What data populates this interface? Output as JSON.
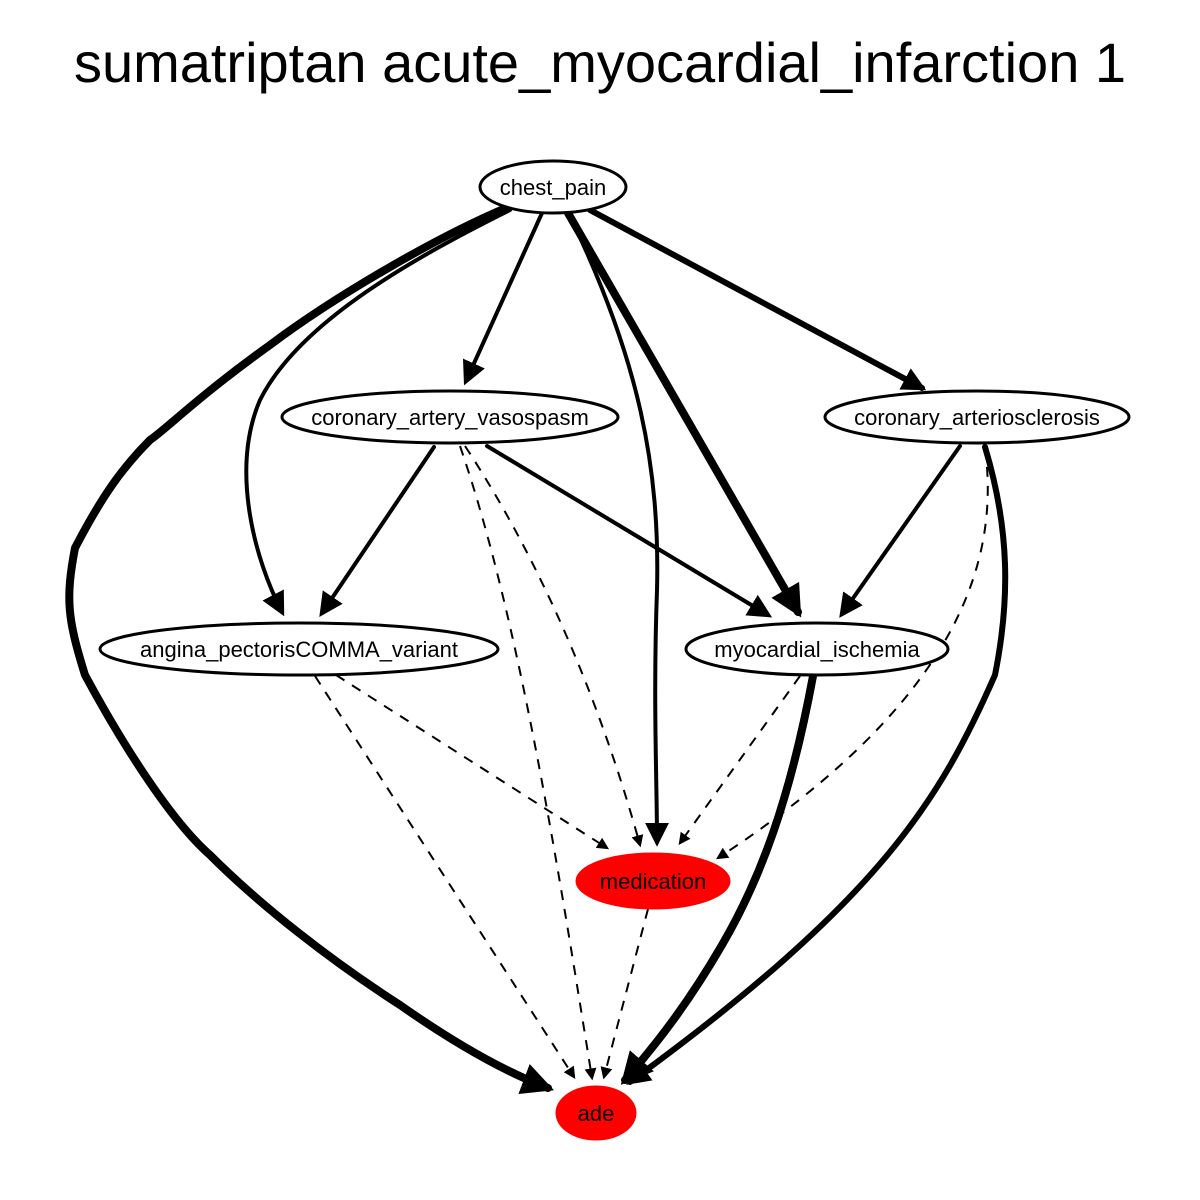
{
  "title": "sumatriptan acute_myocardial_infarction 1",
  "colors": {
    "highlight": "#ff0000",
    "default_fill": "#ffffff",
    "stroke": "#000000"
  },
  "nodes": [
    {
      "id": "chest_pain",
      "label": "chest_pain",
      "highlighted": false
    },
    {
      "id": "coronary_artery_vasospasm",
      "label": "coronary_artery_vasospasm",
      "highlighted": false
    },
    {
      "id": "coronary_arteriosclerosis",
      "label": "coronary_arteriosclerosis",
      "highlighted": false
    },
    {
      "id": "angina_pectoris_variant",
      "label": "angina_pectorisCOMMA_variant",
      "highlighted": false
    },
    {
      "id": "myocardial_ischemia",
      "label": "myocardial_ischemia",
      "highlighted": false
    },
    {
      "id": "medication",
      "label": "medication",
      "highlighted": true
    },
    {
      "id": "ade",
      "label": "ade",
      "highlighted": true
    }
  ],
  "edges": [
    {
      "from": "chest_pain",
      "to": "ade",
      "style": "solid",
      "weight": 8
    },
    {
      "from": "chest_pain",
      "to": "angina_pectoris_variant",
      "style": "solid",
      "weight": 4
    },
    {
      "from": "chest_pain",
      "to": "coronary_artery_vasospasm",
      "style": "solid",
      "weight": 4
    },
    {
      "from": "chest_pain",
      "to": "medication",
      "style": "solid",
      "weight": 4
    },
    {
      "from": "chest_pain",
      "to": "myocardial_ischemia",
      "style": "solid",
      "weight": 8
    },
    {
      "from": "chest_pain",
      "to": "coronary_arteriosclerosis",
      "style": "solid",
      "weight": 6
    },
    {
      "from": "coronary_artery_vasospasm",
      "to": "angina_pectoris_variant",
      "style": "solid",
      "weight": 4
    },
    {
      "from": "coronary_artery_vasospasm",
      "to": "myocardial_ischemia",
      "style": "solid",
      "weight": 4
    },
    {
      "from": "coronary_artery_vasospasm",
      "to": "medication",
      "style": "dashed",
      "weight": 2
    },
    {
      "from": "coronary_artery_vasospasm",
      "to": "ade",
      "style": "dashed",
      "weight": 2
    },
    {
      "from": "coronary_arteriosclerosis",
      "to": "myocardial_ischemia",
      "style": "solid",
      "weight": 4
    },
    {
      "from": "coronary_arteriosclerosis",
      "to": "medication",
      "style": "dashed",
      "weight": 2
    },
    {
      "from": "coronary_arteriosclerosis",
      "to": "ade",
      "style": "solid",
      "weight": 6
    },
    {
      "from": "angina_pectoris_variant",
      "to": "medication",
      "style": "dashed",
      "weight": 2
    },
    {
      "from": "angina_pectoris_variant",
      "to": "ade",
      "style": "dashed",
      "weight": 2
    },
    {
      "from": "myocardial_ischemia",
      "to": "medication",
      "style": "dashed",
      "weight": 2
    },
    {
      "from": "myocardial_ischemia",
      "to": "ade",
      "style": "solid",
      "weight": 8
    },
    {
      "from": "medication",
      "to": "ade",
      "style": "dashed",
      "weight": 2
    }
  ]
}
